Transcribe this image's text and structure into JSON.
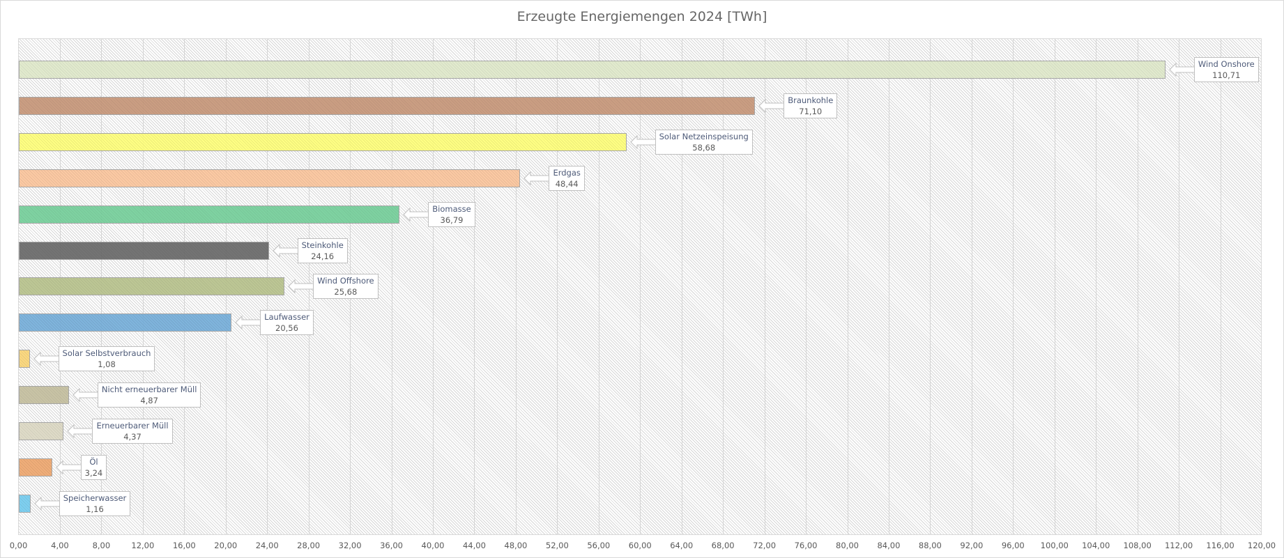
{
  "chart_data": {
    "type": "bar",
    "orientation": "horizontal",
    "title": "Erzeugte Energiemengen 2024 [TWh]",
    "xlabel": "",
    "ylabel": "",
    "xlim": [
      0,
      120
    ],
    "grid": true,
    "legend": "none",
    "x_ticks": [
      "0,00",
      "4,00",
      "8,00",
      "12,00",
      "16,00",
      "20,00",
      "24,00",
      "28,00",
      "32,00",
      "36,00",
      "40,00",
      "44,00",
      "48,00",
      "52,00",
      "56,00",
      "60,00",
      "64,00",
      "68,00",
      "72,00",
      "76,00",
      "80,00",
      "84,00",
      "88,00",
      "92,00",
      "96,00",
      "100,00",
      "104,00",
      "108,00",
      "112,00",
      "116,00",
      "120,00"
    ],
    "categories": [
      "Wind Onshore",
      "Braunkohle",
      "Solar Netzeinspeisung",
      "Erdgas",
      "Biomasse",
      "Steinkohle",
      "Wind Offshore",
      "Laufwasser",
      "Solar Selbstverbrauch",
      "Nicht erneuerbarer Müll",
      "Erneuerbarer Müll",
      "Öl",
      "Speicherwasser"
    ],
    "values": [
      110.71,
      71.1,
      58.68,
      48.44,
      36.79,
      24.16,
      25.68,
      20.56,
      1.08,
      4.87,
      4.37,
      3.24,
      1.16
    ],
    "value_labels": [
      "110,71",
      "71,10",
      "58,68",
      "48,44",
      "36,79",
      "24,16",
      "25,68",
      "20,56",
      "1,08",
      "4,87",
      "4,37",
      "3,24",
      "1,16"
    ],
    "colors": [
      "#e1ebcc",
      "#c8987a",
      "#ffff7a",
      "#fcc69d",
      "#76d19c",
      "#6a6a6a",
      "#b9c48e",
      "#76afdb",
      "#fbd678",
      "#c6c1a0",
      "#dedac5",
      "#efa86f",
      "#75cdf0"
    ]
  }
}
